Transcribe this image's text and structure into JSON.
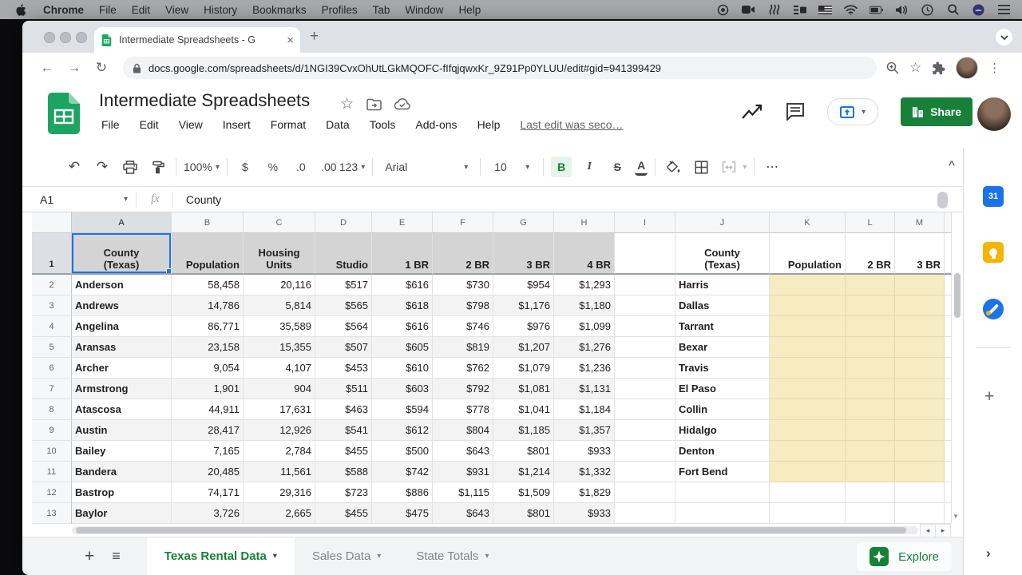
{
  "menubar": {
    "app_name": "Chrome",
    "menus": [
      "File",
      "Edit",
      "View",
      "History",
      "Bookmarks",
      "Profiles",
      "Tab",
      "Window",
      "Help"
    ]
  },
  "browser": {
    "tab_title": "Intermediate Spreadsheets - G",
    "url": "docs.google.com/spreadsheets/d/1NGI39CvxOhUtLGkMQOFC-fIfqjqwxKr_9Z91Pp0YLUU/edit#gid=941399429"
  },
  "app_header": {
    "title": "Intermediate Spreadsheets",
    "menus": [
      "File",
      "Edit",
      "View",
      "Insert",
      "Format",
      "Data",
      "Tools",
      "Add-ons",
      "Help"
    ],
    "last_edit": "Last edit was seco…",
    "share_label": "Share"
  },
  "toolbar": {
    "zoom": "100%",
    "currency": "$",
    "percent": "%",
    "decrease_decimal": ".0",
    "increase_decimal": ".00",
    "number_format": "123",
    "font_name": "Arial",
    "font_size": "10",
    "bold": "B",
    "italic": "I",
    "strikethrough": "S",
    "text_color": "A"
  },
  "formula_bar": {
    "cell_reference": "A1",
    "fx_label": "fx",
    "value": "County"
  },
  "grid": {
    "column_letters": [
      "A",
      "B",
      "C",
      "D",
      "E",
      "F",
      "G",
      "H",
      "I",
      "J",
      "K",
      "L",
      "M"
    ],
    "header_row": {
      "A": "County\n(Texas)",
      "B": "Population",
      "C": "Housing\nUnits",
      "D": "Studio",
      "E": "1 BR",
      "F": "2 BR",
      "G": "3 BR",
      "H": "4 BR",
      "I": "",
      "J": "County\n(Texas)",
      "K": "Population",
      "L": "2 BR",
      "M": "3 BR"
    },
    "rows": [
      {
        "row": "2",
        "A": "Anderson",
        "B": "58,458",
        "C": "20,116",
        "D": "$517",
        "E": "$616",
        "F": "$730",
        "G": "$954",
        "H": "$1,293",
        "J": "Harris"
      },
      {
        "row": "3",
        "A": "Andrews",
        "B": "14,786",
        "C": "5,814",
        "D": "$565",
        "E": "$618",
        "F": "$798",
        "G": "$1,176",
        "H": "$1,180",
        "J": "Dallas"
      },
      {
        "row": "4",
        "A": "Angelina",
        "B": "86,771",
        "C": "35,589",
        "D": "$564",
        "E": "$616",
        "F": "$746",
        "G": "$976",
        "H": "$1,099",
        "J": "Tarrant"
      },
      {
        "row": "5",
        "A": "Aransas",
        "B": "23,158",
        "C": "15,355",
        "D": "$507",
        "E": "$605",
        "F": "$819",
        "G": "$1,207",
        "H": "$1,276",
        "J": "Bexar"
      },
      {
        "row": "6",
        "A": "Archer",
        "B": "9,054",
        "C": "4,107",
        "D": "$453",
        "E": "$610",
        "F": "$762",
        "G": "$1,079",
        "H": "$1,236",
        "J": "Travis"
      },
      {
        "row": "7",
        "A": "Armstrong",
        "B": "1,901",
        "C": "904",
        "D": "$511",
        "E": "$603",
        "F": "$792",
        "G": "$1,081",
        "H": "$1,131",
        "J": "El Paso"
      },
      {
        "row": "8",
        "A": "Atascosa",
        "B": "44,911",
        "C": "17,631",
        "D": "$463",
        "E": "$594",
        "F": "$778",
        "G": "$1,041",
        "H": "$1,184",
        "J": "Collin"
      },
      {
        "row": "9",
        "A": "Austin",
        "B": "28,417",
        "C": "12,926",
        "D": "$541",
        "E": "$612",
        "F": "$804",
        "G": "$1,185",
        "H": "$1,357",
        "J": "Hidalgo"
      },
      {
        "row": "10",
        "A": "Bailey",
        "B": "7,165",
        "C": "2,784",
        "D": "$455",
        "E": "$500",
        "F": "$643",
        "G": "$801",
        "H": "$933",
        "J": "Denton"
      },
      {
        "row": "11",
        "A": "Bandera",
        "B": "20,485",
        "C": "11,561",
        "D": "$588",
        "E": "$742",
        "F": "$931",
        "G": "$1,214",
        "H": "$1,332",
        "J": "Fort Bend"
      },
      {
        "row": "12",
        "A": "Bastrop",
        "B": "74,171",
        "C": "29,316",
        "D": "$723",
        "E": "$886",
        "F": "$1,115",
        "G": "$1,509",
        "H": "$1,829",
        "J": ""
      },
      {
        "row": "13",
        "A": "Baylor",
        "B": "3,726",
        "C": "2,665",
        "D": "$455",
        "E": "$475",
        "F": "$643",
        "G": "$801",
        "H": "$933",
        "J": ""
      }
    ]
  },
  "sheet_bar": {
    "tabs": [
      {
        "label": "Texas Rental Data",
        "active": true
      },
      {
        "label": "Sales Data",
        "active": false
      },
      {
        "label": "State Totals",
        "active": false
      }
    ],
    "explore_label": "Explore"
  },
  "icons": {
    "caret_down": "▾",
    "close": "×",
    "back": "←",
    "forward": "→",
    "reload": "↻",
    "undo": "↶",
    "redo": "↷",
    "more": "⋯",
    "kebab": "⋮",
    "star": "☆",
    "plus": "+",
    "all_sheets": "≡",
    "collapse": "^",
    "scroll_left": "◂",
    "scroll_right": "▸",
    "chevron_right": "›",
    "calendar_31": "31"
  },
  "colors": {
    "accent_green": "#188038",
    "selection_blue": "#1a73e8",
    "highlight_yellow": "#f7ecc1"
  }
}
